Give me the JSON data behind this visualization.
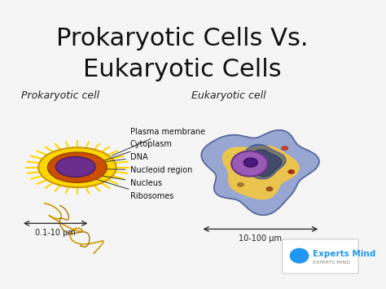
{
  "title_line1": "Prokaryotic Cells Vs.",
  "title_line2": "Eukaryotic Cells",
  "title_fontsize": 22,
  "title_color": "#111111",
  "bg_color": "#f5f5f5",
  "prokaryotic_label": "Prokaryotic cell",
  "eukaryotic_label": "Eukaryotic cell",
  "label_fontsize": 9,
  "annotations": [
    "Plasma membrane",
    "Cytoplasm",
    "DNA",
    "Nucleoid region",
    "Nucleus",
    "Ribosomes"
  ],
  "scale_prokaryotic": "0.1-10 μm",
  "scale_eukaryotic": "10-100 μm",
  "logo_text": "Experts Mind",
  "logo_subtext": "EXPERTS MIND",
  "logo_color": "#2196F3",
  "annotation_fontsize": 7,
  "annotation_color": "#111111"
}
